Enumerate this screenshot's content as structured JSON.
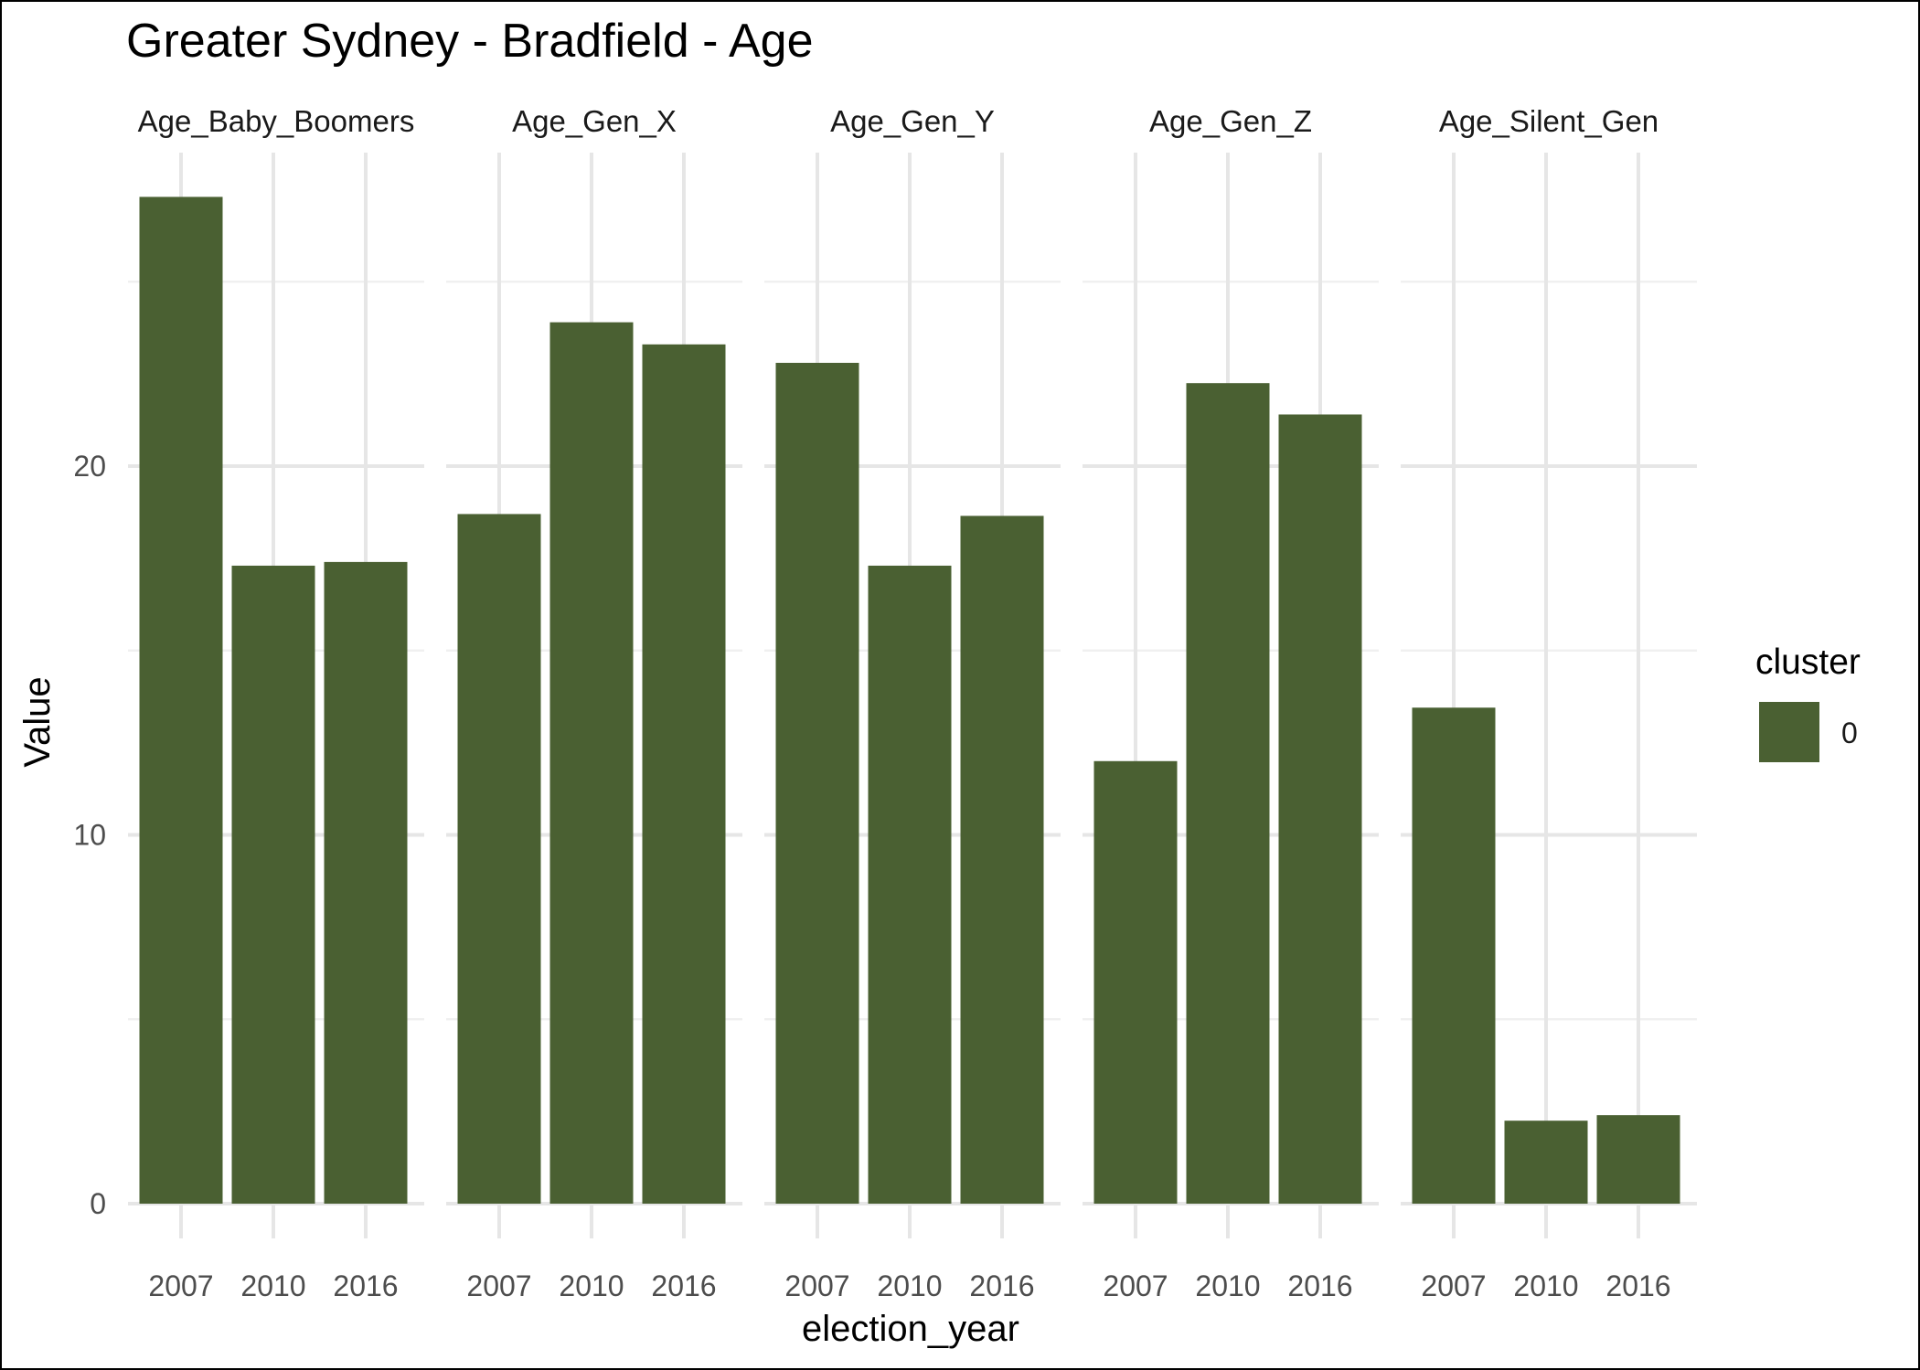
{
  "chart_data": {
    "type": "bar",
    "title": "Greater Sydney - Bradfield - Age",
    "xlabel": "election_year",
    "ylabel": "Value",
    "ylim": [
      0,
      28.5
    ],
    "y_ticks": [
      0,
      10,
      20
    ],
    "categories": [
      "2007",
      "2010",
      "2016"
    ],
    "facets": [
      {
        "name": "Age_Baby_Boomers",
        "values": [
          27.3,
          17.3,
          17.4
        ]
      },
      {
        "name": "Age_Gen_X",
        "values": [
          18.7,
          23.9,
          23.3
        ]
      },
      {
        "name": "Age_Gen_Y",
        "values": [
          22.8,
          17.3,
          18.65
        ]
      },
      {
        "name": "Age_Gen_Z",
        "values": [
          12.0,
          22.25,
          21.4
        ]
      },
      {
        "name": "Age_Silent_Gen",
        "values": [
          13.45,
          2.25,
          2.4
        ]
      }
    ],
    "legend": {
      "title": "cluster",
      "items": [
        "0"
      ],
      "position": "right"
    },
    "bar_color": "#4a6032",
    "grid": true
  }
}
